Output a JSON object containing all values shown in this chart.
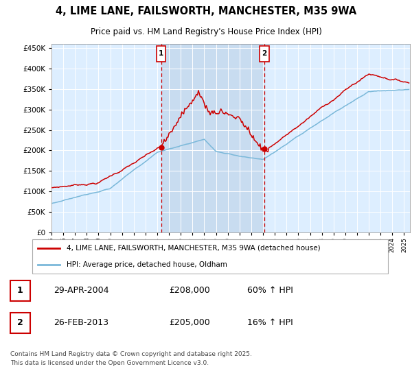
{
  "title": "4, LIME LANE, FAILSWORTH, MANCHESTER, M35 9WA",
  "subtitle": "Price paid vs. HM Land Registry's House Price Index (HPI)",
  "legend_line1": "4, LIME LANE, FAILSWORTH, MANCHESTER, M35 9WA (detached house)",
  "legend_line2": "HPI: Average price, detached house, Oldham",
  "marker1_date": "29-APR-2004",
  "marker1_price": 208000,
  "marker1_hpi": "60% ↑ HPI",
  "marker1_year": 2004.33,
  "marker2_date": "26-FEB-2013",
  "marker2_price": 205000,
  "marker2_hpi": "16% ↑ HPI",
  "marker2_year": 2013.12,
  "footer": "Contains HM Land Registry data © Crown copyright and database right 2025.\nThis data is licensed under the Open Government Licence v3.0.",
  "hpi_color": "#7ab8d9",
  "price_color": "#cc0000",
  "marker_color": "#cc0000",
  "bg_color": "#ddeeff",
  "highlight_color": "#c8dcf0",
  "ylim": [
    0,
    460000
  ],
  "yticks": [
    0,
    50000,
    100000,
    150000,
    200000,
    250000,
    300000,
    350000,
    400000,
    450000
  ],
  "xmin": 1995,
  "xmax": 2025.5
}
